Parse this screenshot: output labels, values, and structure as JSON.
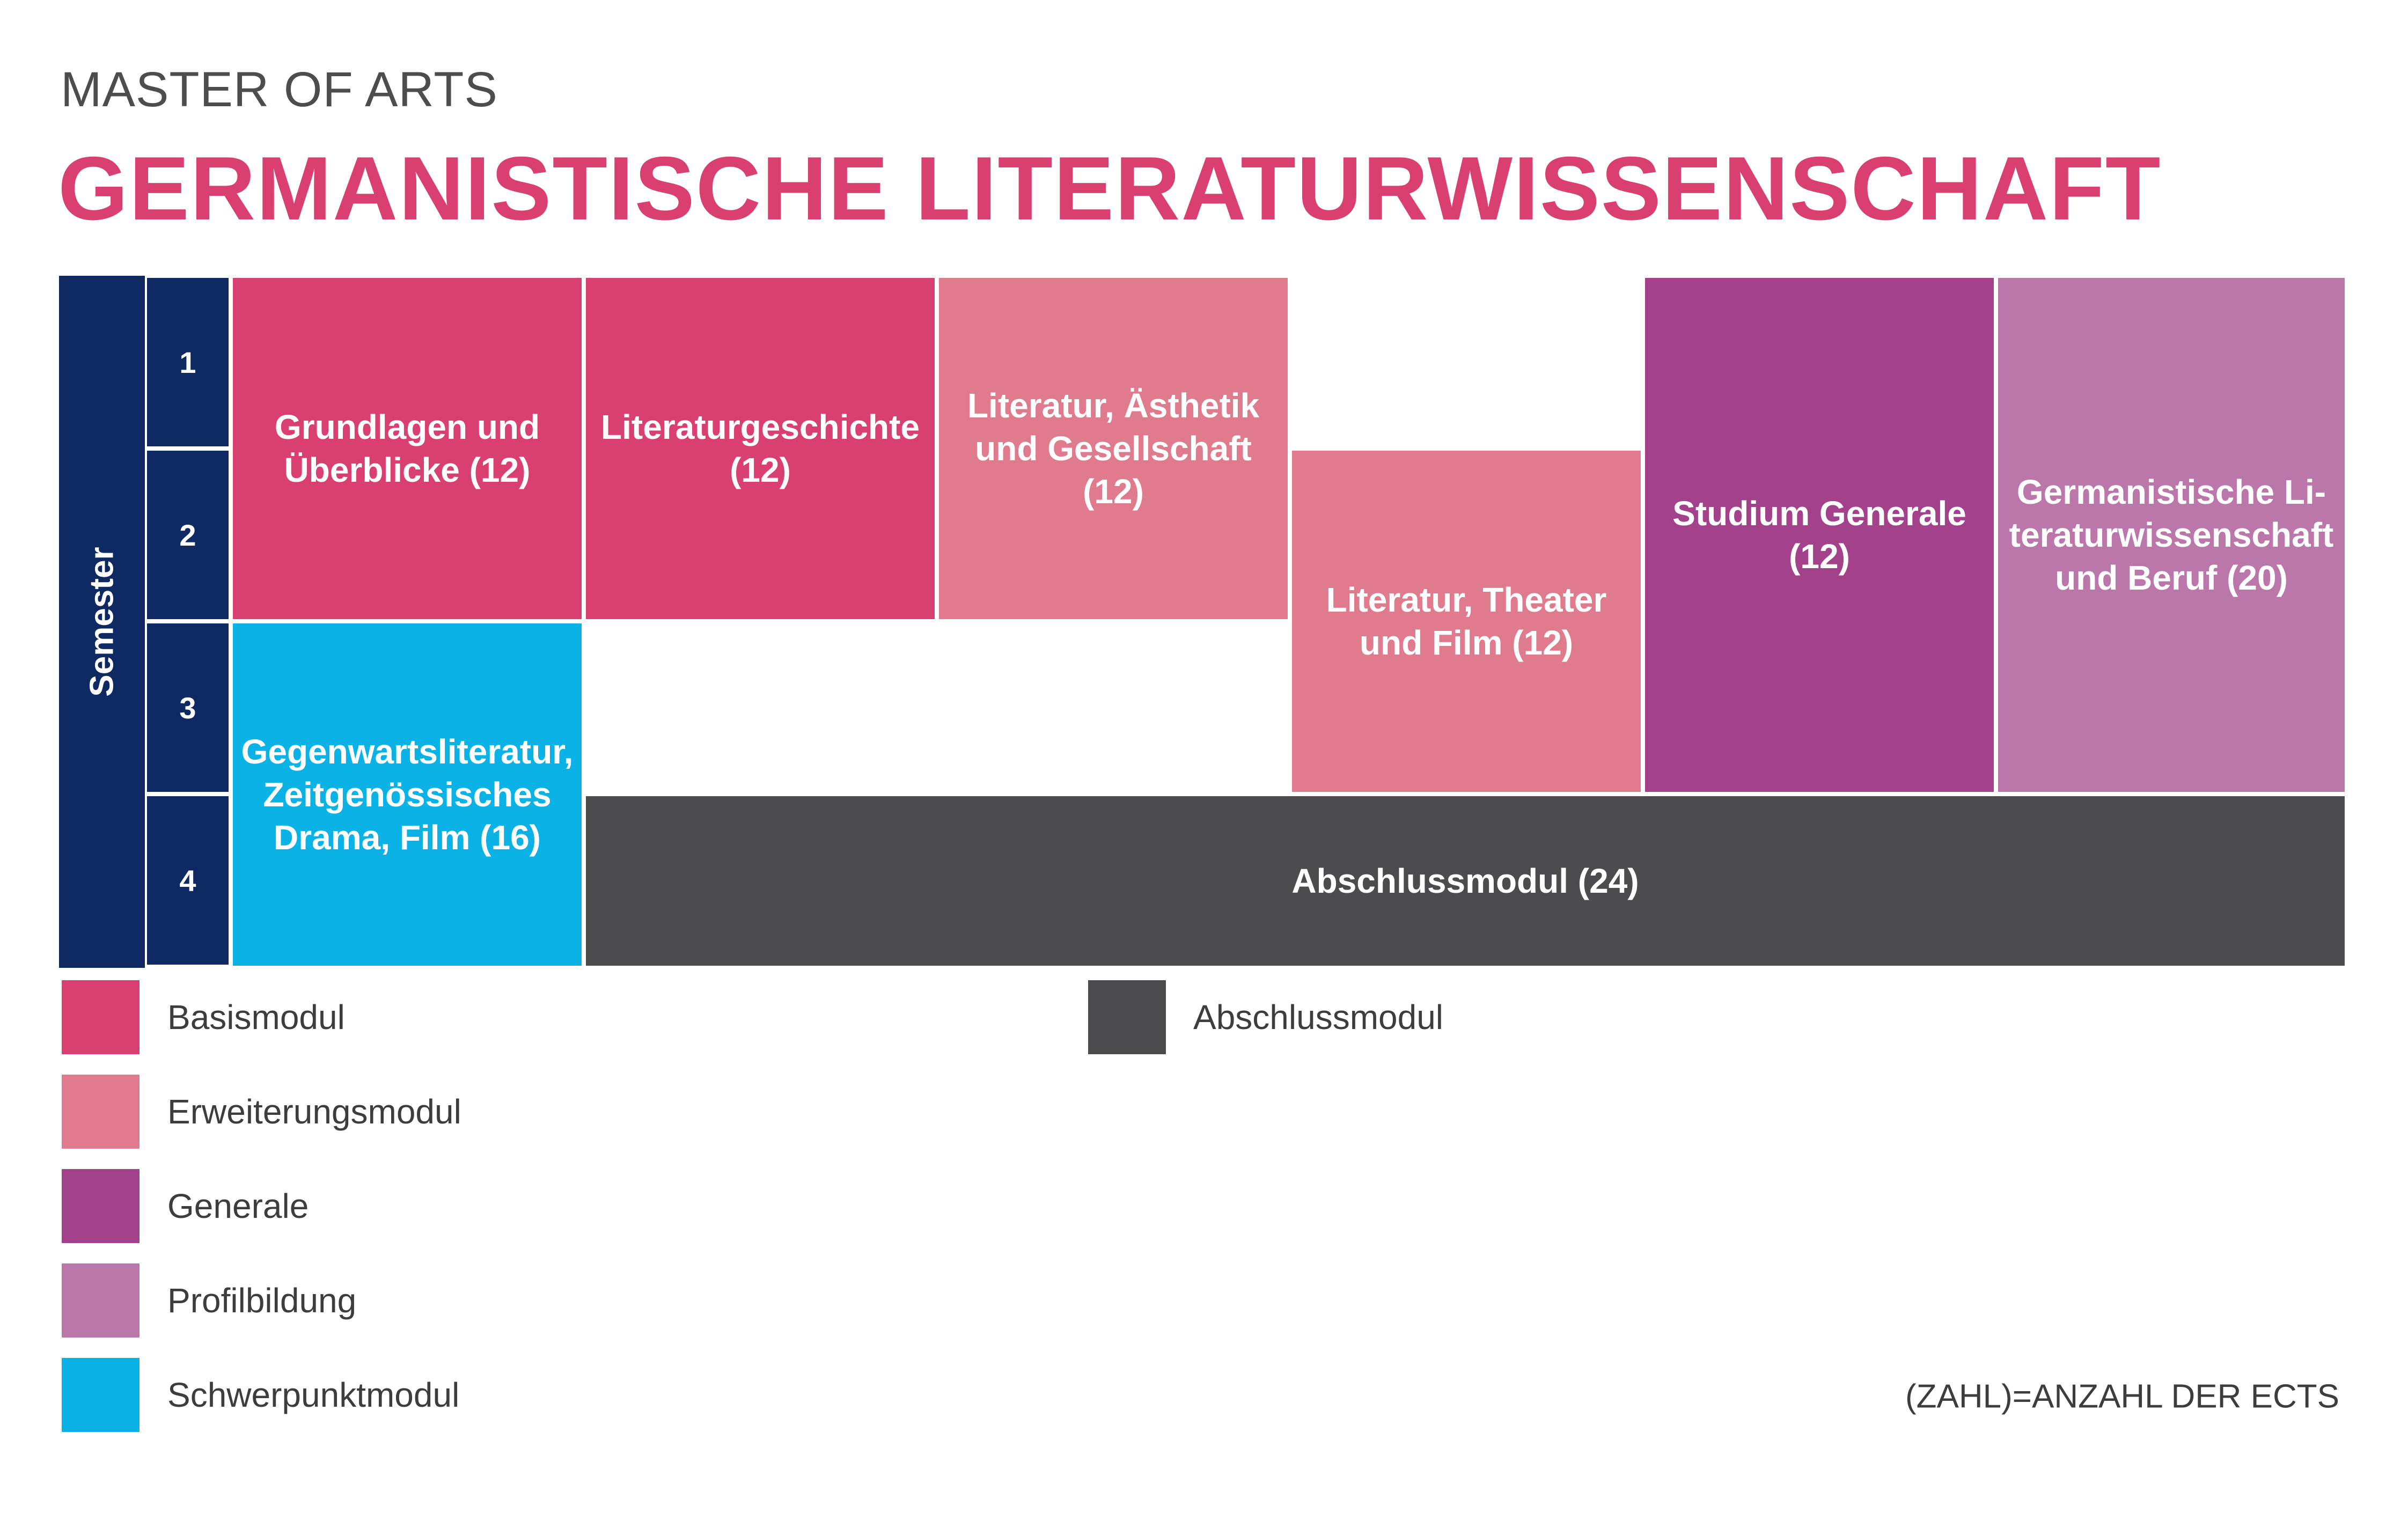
{
  "header": {
    "subtitle": "MASTER OF ARTS",
    "title": "GERMANISTISCHE LITERATURWISSENSCHAFT"
  },
  "colors": {
    "basis": "#d94070",
    "erweiterung": "#e07a8d",
    "generale": "#a3418b",
    "profil": "#bb77a9",
    "schwerpunkt": "#0ab2e6",
    "abschluss": "#4c4c4e",
    "semester": "#0f2a63",
    "title": "#d94070"
  },
  "semester": {
    "label": "Semester",
    "numbers": [
      "1",
      "2",
      "3",
      "4"
    ]
  },
  "modules": {
    "grundlagen": "Grundlagen und\nÜberblicke (12)",
    "literaturgeschichte": "Literaturgeschichte\n(12)",
    "aesthetik": "Literatur, Ästhetik\nund Gesellschaft (12)",
    "theater": "Literatur, Theater\nund Film (12)",
    "studium_generale": "Studium Generale\n(12)",
    "beruf": "Germanistische Li-\nteraturwissenschaft\nund Beruf (20)",
    "gegenwart": "Gegenwartsliteratur,\nZeitgenössisches\nDrama, Film (16)",
    "abschluss": "Abschlussmodul (24)"
  },
  "legend": {
    "basis": "Basismodul",
    "erweiterung": "Erweiterungsmodul",
    "generale": "Generale",
    "profil": "Profilbildung",
    "schwerpunkt": "Schwerpunktmodul",
    "abschluss": "Abschlussmodul"
  },
  "note": "(ZAHL)=ANZAHL DER ECTS"
}
